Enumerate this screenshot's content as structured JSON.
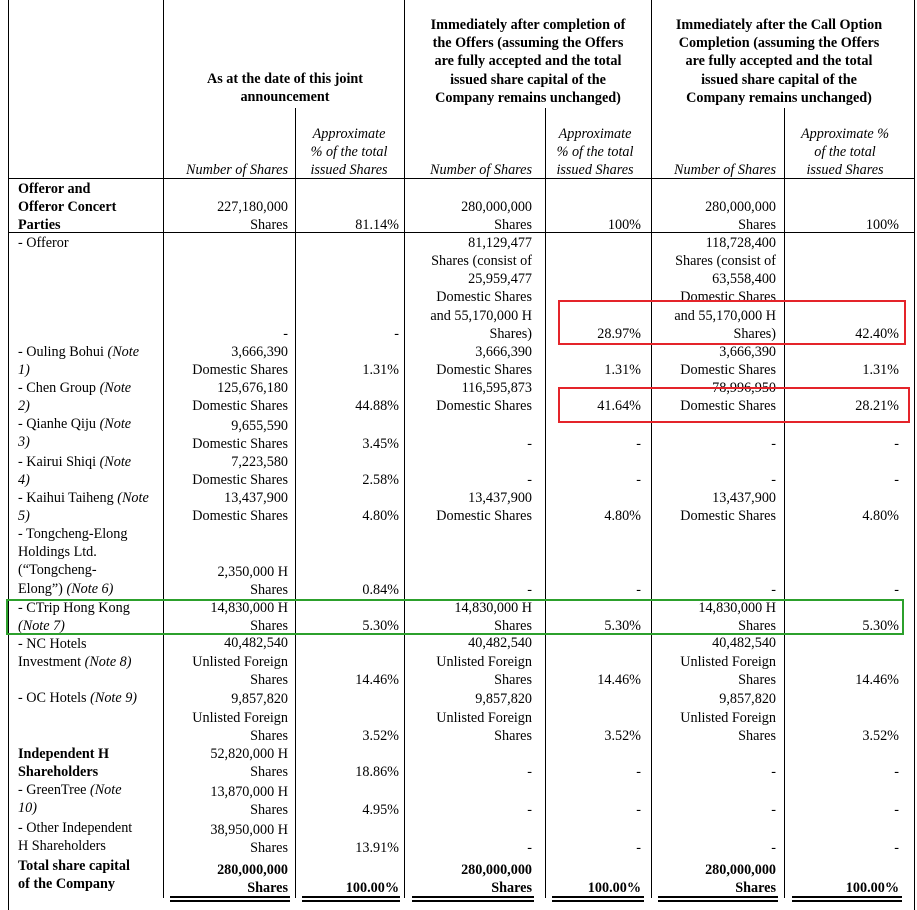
{
  "header": {
    "group_as_at": "As at the date of this joint\nannouncement",
    "group_after_offers": "Immediately after completion of\nthe Offers (assuming the Offers\nare fully accepted and the total\nissued share capital of the\nCompany remains unchanged)",
    "group_after_call": "Immediately after the Call Option\nCompletion (assuming the Offers\nare fully accepted and the total\nissued share capital of the\nCompany remains unchanged)",
    "num_shares": "Number of Shares",
    "pct_a": "Approximate\n% of the total\nissued Shares",
    "pct_b": "Approximate\n% of the total\nissued Shares",
    "pct_c": "Approximate %\nof the total\nissued Shares"
  },
  "rows": [
    {
      "label": "Offeror and\nOfferor Concert\nParties",
      "label_bold": true,
      "a_num": "227,180,000\nShares",
      "a_pct": "81.14%",
      "b_num": "280,000,000\nShares",
      "b_pct": "100%",
      "c_num": "280,000,000\nShares",
      "c_pct": "100%"
    },
    {
      "label": "- Offeror",
      "a_num": "-",
      "a_pct": "-",
      "b_num": "81,129,477\nShares (consist of\n25,959,477\nDomestic Shares\nand 55,170,000 H\nShares)",
      "b_pct": "28.97%",
      "c_num": "118,728,400\nShares (consist of\n63,558,400\nDomestic Shares\nand 55,170,000 H\nShares)",
      "c_pct": "42.40%"
    },
    {
      "label": "- Ouling Bohui",
      "note": "(Note\n1)",
      "a_num": "3,666,390\nDomestic Shares",
      "a_pct": "1.31%",
      "b_num": "3,666,390\nDomestic Shares",
      "b_pct": "1.31%",
      "c_num": "3,666,390\nDomestic Shares",
      "c_pct": "1.31%"
    },
    {
      "label": "- Chen Group",
      "note": "(Note\n2)",
      "a_num": "125,676,180\nDomestic Shares",
      "a_pct": "44.88%",
      "b_num": "116,595,873\nDomestic Shares",
      "b_pct": "41.64%",
      "c_num": "78,996,950\nDomestic Shares",
      "c_pct": "28.21%"
    },
    {
      "label": "- Qianhe Qiju",
      "note": "(Note\n3)",
      "a_num": "9,655,590\nDomestic Shares",
      "a_pct": "3.45%",
      "b_num": "-",
      "b_pct": "-",
      "c_num": "-",
      "c_pct": "-"
    },
    {
      "label": "- Kairui Shiqi",
      "note": "(Note\n4)",
      "a_num": "7,223,580\nDomestic Shares",
      "a_pct": "2.58%",
      "b_num": "-",
      "b_pct": "-",
      "c_num": "-",
      "c_pct": "-"
    },
    {
      "label": "- Kaihui Taiheng",
      "note": "(Note 5)",
      "a_num": "13,437,900\nDomestic Shares",
      "a_pct": "4.80%",
      "b_num": "13,437,900\nDomestic Shares",
      "b_pct": "4.80%",
      "c_num": "13,437,900\nDomestic Shares",
      "c_pct": "4.80%"
    },
    {
      "label": "- Tongcheng-Elong\nHoldings Ltd.\n(“Tongcheng-\nElong”)",
      "note": "(Note 6)",
      "a_num": "2,350,000 H\nShares",
      "a_pct": "0.84%",
      "b_num": "-",
      "b_pct": "-",
      "c_num": "-",
      "c_pct": "-"
    },
    {
      "label": "- CTrip Hong Kong",
      "note": "(Note 7)",
      "a_num": "14,830,000 H\nShares",
      "a_pct": "5.30%",
      "b_num": "14,830,000 H\nShares",
      "b_pct": "5.30%",
      "c_num": "14,830,000 H\nShares",
      "c_pct": "5.30%"
    },
    {
      "label": "- NC Hotels\nInvestment",
      "note": "(Note 8)",
      "a_num": "40,482,540\nUnlisted Foreign\nShares",
      "a_pct": "14.46%",
      "b_num": "40,482,540\nUnlisted Foreign\nShares",
      "b_pct": "14.46%",
      "c_num": "40,482,540\nUnlisted Foreign\nShares",
      "c_pct": "14.46%"
    },
    {
      "label": "- OC Hotels",
      "note": "(Note 9)",
      "a_num": "9,857,820\nUnlisted Foreign\nShares",
      "a_pct": "3.52%",
      "b_num": "9,857,820\nUnlisted Foreign\nShares",
      "b_pct": "3.52%",
      "c_num": "9,857,820\nUnlisted Foreign\nShares",
      "c_pct": "3.52%"
    },
    {
      "label": "Independent H\nShareholders",
      "label_bold": true,
      "a_num": "52,820,000 H\nShares",
      "a_pct": "18.86%",
      "b_num": "-",
      "b_pct": "-",
      "c_num": "-",
      "c_pct": "-"
    },
    {
      "label": "- GreenTree",
      "note": "(Note\n10)",
      "a_num": "13,870,000 H\nShares",
      "a_pct": "4.95%",
      "b_num": "-",
      "b_pct": "-",
      "c_num": "-",
      "c_pct": "-"
    },
    {
      "label": "- Other Independent\nH Shareholders",
      "a_num": "38,950,000 H\nShares",
      "a_pct": "13.91%",
      "b_num": "-",
      "b_pct": "-",
      "c_num": "-",
      "c_pct": "-"
    },
    {
      "label": "Total share capital\nof the Company",
      "label_bold": true,
      "bold": true,
      "a_num": "280,000,000\nShares",
      "a_pct": "100.00%",
      "b_num": "280,000,000\nShares",
      "b_pct": "100.00%",
      "c_num": "280,000,000\nShares",
      "c_pct": "100.00%"
    }
  ],
  "colors": {
    "red_box": "#e4242a",
    "green_box": "#2ca02c"
  }
}
